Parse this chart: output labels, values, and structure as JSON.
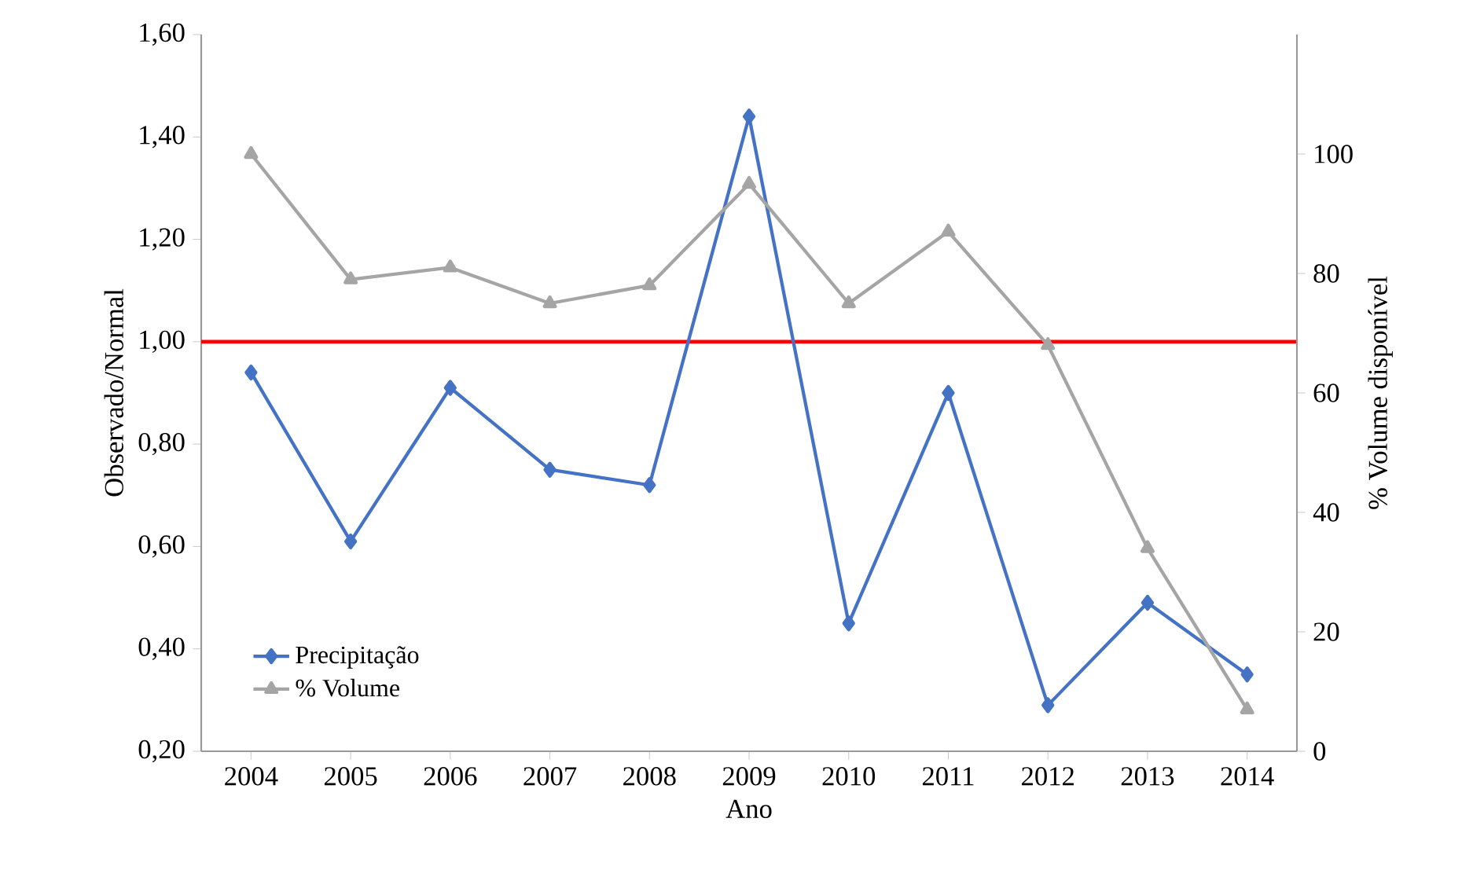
{
  "chart_data": {
    "type": "line",
    "xlabel": "Ano",
    "ylabel": "Observado/Normal",
    "y2label": "% Volume disponível",
    "categories": [
      "2004",
      "2005",
      "2006",
      "2007",
      "2008",
      "2009",
      "2010",
      "2011",
      "2012",
      "2013",
      "2014"
    ],
    "series": [
      {
        "name": "Precipitação",
        "color": "#4472c4",
        "marker": "diamond",
        "values": [
          0.94,
          0.61,
          0.91,
          0.75,
          0.72,
          1.44,
          0.45,
          0.9,
          0.29,
          0.49,
          0.35
        ]
      },
      {
        "name": "% Volume",
        "color": "#a5a5a5",
        "marker": "triangle",
        "axis": "y2",
        "values": [
          100,
          79,
          81,
          75,
          78,
          95,
          75,
          87,
          68,
          34,
          7
        ]
      }
    ],
    "ylim": [
      0.2,
      1.6
    ],
    "yticks": [
      {
        "value": 0.2,
        "label": "0,20"
      },
      {
        "value": 0.4,
        "label": "0,40"
      },
      {
        "value": 0.6,
        "label": "0,60"
      },
      {
        "value": 0.8,
        "label": "0,80"
      },
      {
        "value": 1.0,
        "label": "1,00"
      },
      {
        "value": 1.2,
        "label": "1,20"
      },
      {
        "value": 1.4,
        "label": "1,40"
      },
      {
        "value": 1.6,
        "label": "1,60"
      }
    ],
    "y2lim": [
      0,
      120
    ],
    "y2ticks": [
      0,
      20,
      40,
      60,
      80,
      100
    ],
    "ref_lines": [
      {
        "axis": "y",
        "value": 1.0,
        "color": "#ff0000"
      }
    ],
    "legend": "bottom left"
  }
}
